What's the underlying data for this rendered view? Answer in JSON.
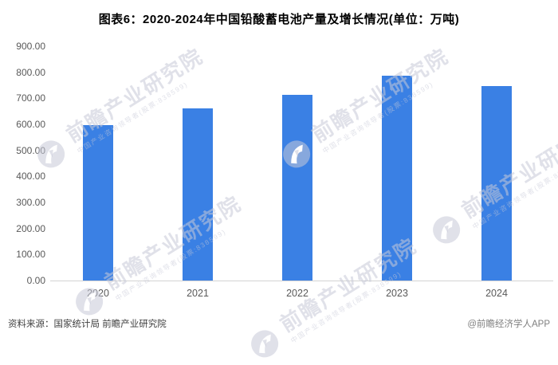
{
  "title": "图表6：2020-2024年中国铅酸蓄电池产量及增长情况(单位：万吨)",
  "chart_data": {
    "type": "bar",
    "title": "图表6：2020-2024年中国铅酸蓄电池产量及增长情况(单位：万吨)",
    "categories": [
      "2020",
      "2021",
      "2022",
      "2023",
      "2024"
    ],
    "values": [
      598,
      662,
      713,
      787,
      747
    ],
    "unit": "万吨",
    "xlabel": "",
    "ylabel": "",
    "ylim": [
      0,
      900
    ],
    "ytick_step": 100,
    "ytick_labels": [
      "0.00",
      "100.00",
      "200.00",
      "300.00",
      "400.00",
      "500.00",
      "600.00",
      "700.00",
      "800.00",
      "900.00"
    ],
    "grid": false,
    "legend_position": "none",
    "bar_color": "#3a80e4"
  },
  "watermark": {
    "brand": "前瞻产业研究院",
    "tagline": "中国产业咨询领导者(股票:838599)"
  },
  "footer": {
    "source": "资料来源：国家统计局 前瞻产业研究院",
    "credit": "@前瞻经济学人APP"
  },
  "colors": {
    "bar": "#3a80e4",
    "axis_text": "#595959",
    "axis_line": "#d4d4d4",
    "title_text": "#000000",
    "source_text": "#404040",
    "credit_text": "#7f7f7f",
    "watermark": "#c7c9d7"
  }
}
